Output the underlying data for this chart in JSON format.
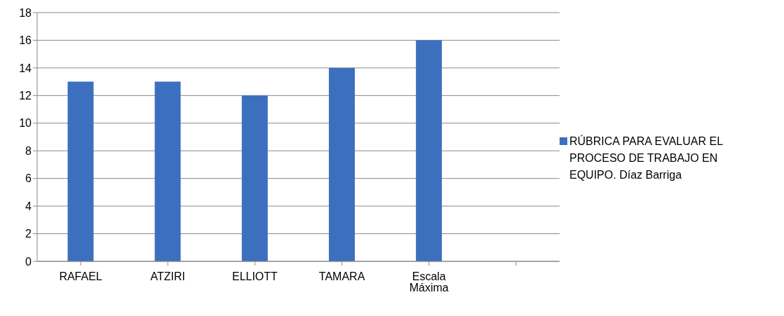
{
  "chart_data": {
    "type": "bar",
    "categories": [
      "RAFAEL",
      "ATZIRI",
      "ELLIOTT",
      "TAMARA",
      "Escala Máxima",
      null
    ],
    "series": [
      {
        "name": "RÚBRICA PARA EVALUAR EL PROCESO DE TRABAJO EN EQUIPO. Díaz Barriga",
        "color": "#3d6fbf",
        "values": [
          13,
          13,
          12,
          14,
          16,
          null
        ]
      }
    ],
    "ylim": [
      0,
      18
    ],
    "yticks": [
      0,
      2,
      4,
      6,
      8,
      10,
      12,
      14,
      16,
      18
    ],
    "grid": "y",
    "legend": "right"
  }
}
